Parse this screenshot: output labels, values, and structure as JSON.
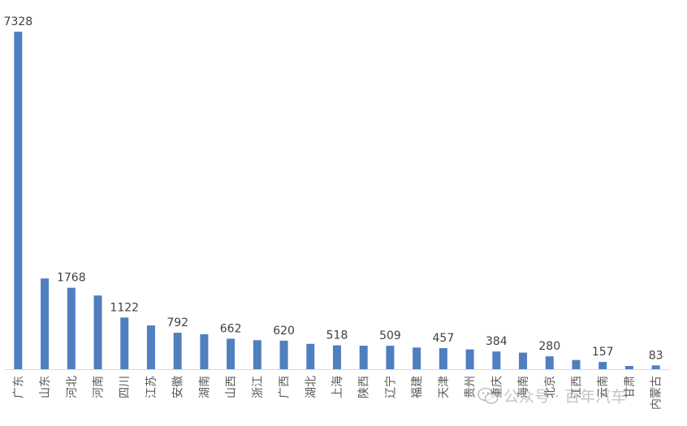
{
  "chart_data": {
    "type": "bar",
    "title": "",
    "xlabel": "",
    "ylabel": "",
    "ylim": [
      0,
      7400
    ],
    "grid": false,
    "bar_color": "#4f7fbf",
    "categories": [
      "广东",
      "山东",
      "河北",
      "河南",
      "四川",
      "江苏",
      "安徽",
      "湖南",
      "山西",
      "浙江",
      "广西",
      "湖北",
      "上海",
      "陕西",
      "辽宁",
      "福建",
      "天津",
      "贵州",
      "重庆",
      "海南",
      "北京",
      "江西",
      "云南",
      "甘肃",
      "内蒙古"
    ],
    "values": [
      7328,
      1970,
      1768,
      1600,
      1122,
      950,
      792,
      760,
      662,
      630,
      620,
      550,
      518,
      510,
      509,
      470,
      457,
      430,
      384,
      360,
      280,
      200,
      157,
      70,
      83
    ],
    "data_labels": {
      "0": "7328",
      "2": "1768",
      "4": "1122",
      "6": "792",
      "8": "662",
      "10": "620",
      "12": "518",
      "14": "509",
      "16": "457",
      "18": "384",
      "20": "280",
      "22": "157",
      "24": "83"
    }
  },
  "watermark": {
    "text": "公众号 · 百年汽车",
    "icon": "wechat-icon"
  }
}
